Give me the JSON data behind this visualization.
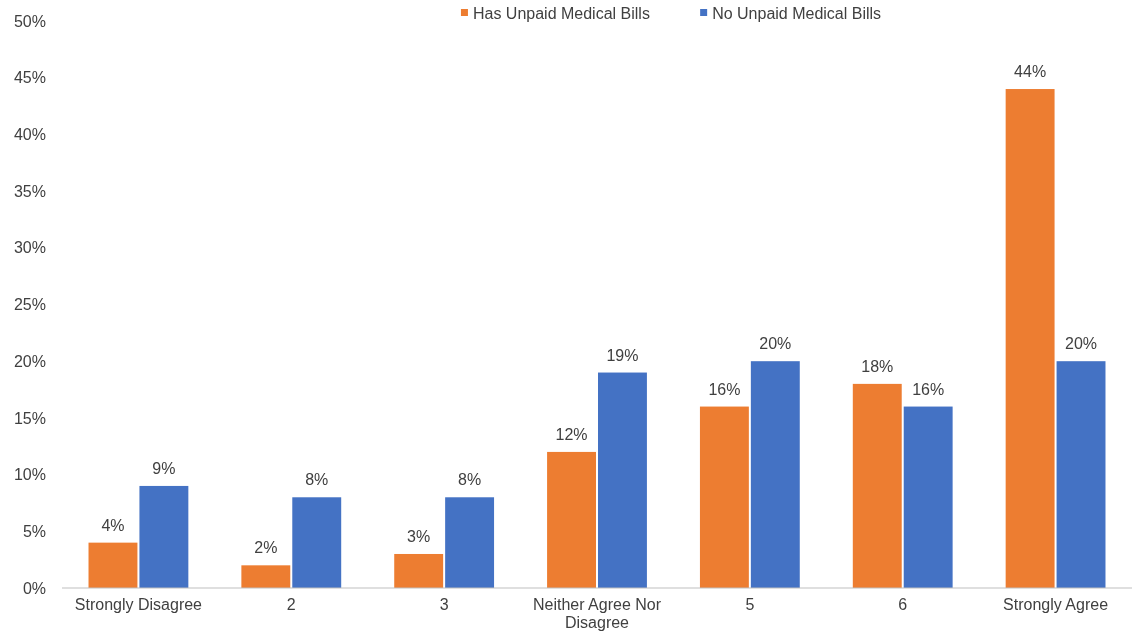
{
  "chart_data": {
    "type": "bar",
    "categories": [
      "Strongly Disagree",
      "2",
      "3",
      "Neither Agree Nor Disagree",
      "5",
      "6",
      "Strongly Agree"
    ],
    "series": [
      {
        "name": "Has Unpaid Medical Bills",
        "color": "#ed7d31",
        "values": [
          4,
          2,
          3,
          12,
          16,
          18,
          44
        ],
        "value_labels": [
          "4%",
          "2%",
          "3%",
          "12%",
          "16%",
          "18%",
          "44%"
        ]
      },
      {
        "name": "No Unpaid Medical Bills",
        "color": "#4472c4",
        "values": [
          9,
          8,
          8,
          19,
          20,
          16,
          20
        ],
        "value_labels": [
          "9%",
          "8%",
          "8%",
          "19%",
          "20%",
          "16%",
          "20%"
        ]
      }
    ],
    "ylim": [
      0,
      50
    ],
    "yticks": [
      {
        "value": 0,
        "label": "0%"
      },
      {
        "value": 5,
        "label": "5%"
      },
      {
        "value": 10,
        "label": "10%"
      },
      {
        "value": 15,
        "label": "15%"
      },
      {
        "value": 20,
        "label": "20%"
      },
      {
        "value": 25,
        "label": "25%"
      },
      {
        "value": 30,
        "label": "30%"
      },
      {
        "value": 35,
        "label": "35%"
      },
      {
        "value": 40,
        "label": "40%"
      },
      {
        "value": 45,
        "label": "45%"
      },
      {
        "value": 50,
        "label": "50%"
      }
    ],
    "grid": false,
    "legend": "top"
  }
}
